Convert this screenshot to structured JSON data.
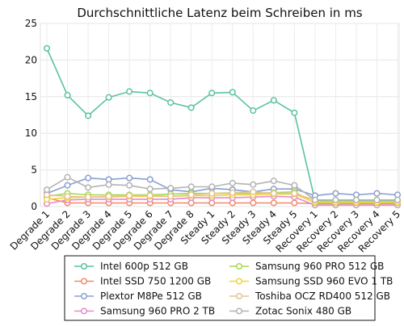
{
  "chart_data": {
    "type": "line",
    "title": "Durchschnittliche Latenz beim Schreiben in ms",
    "xlabel": "",
    "ylabel": "",
    "ylim": [
      0,
      25
    ],
    "yticks": [
      0,
      5,
      10,
      15,
      20,
      25
    ],
    "grid": true,
    "legend_position": "bottom",
    "categories": [
      "Degrade 1",
      "Degrade 2",
      "Degrade 3",
      "Degrade 4",
      "Degrade 5",
      "Degrade 6",
      "Degrade 7",
      "Degrade 8",
      "Steady 1",
      "Steady 2",
      "Steady 3",
      "Steady 4",
      "Steady 5",
      "Recovery 1",
      "Recovery 2",
      "Recovery 3",
      "Recovery 4",
      "Recovery 5"
    ],
    "series": [
      {
        "name": "Intel 600p 512 GB",
        "color": "#5cc39e",
        "values": [
          21.6,
          15.2,
          12.4,
          14.9,
          15.7,
          15.5,
          14.2,
          13.5,
          15.5,
          15.6,
          13.1,
          14.5,
          12.8,
          0.8,
          0.8,
          0.8,
          0.8,
          0.8
        ]
      },
      {
        "name": "Intel SSD 750 1200 GB",
        "color": "#f08a6c",
        "values": [
          1.2,
          0.5,
          0.5,
          0.5,
          0.5,
          0.5,
          0.5,
          0.5,
          0.5,
          0.5,
          0.5,
          0.5,
          0.5,
          0.4,
          0.4,
          0.4,
          0.4,
          0.4
        ]
      },
      {
        "name": "Plextor M8Pe 512 GB",
        "color": "#8aa0d0",
        "values": [
          1.8,
          2.9,
          3.9,
          3.7,
          3.9,
          3.7,
          2.3,
          2.0,
          2.5,
          2.3,
          2.0,
          2.4,
          2.4,
          1.5,
          1.8,
          1.6,
          1.8,
          1.6
        ]
      },
      {
        "name": "Samsung 960 PRO 2 TB",
        "color": "#e58bcc",
        "values": [
          0.4,
          0.9,
          1.0,
          1.0,
          1.0,
          1.0,
          1.0,
          1.2,
          1.2,
          1.2,
          1.3,
          1.4,
          1.3,
          0.2,
          0.2,
          0.2,
          0.2,
          0.2
        ]
      },
      {
        "name": "Samsung 960 PRO 512 GB",
        "color": "#a6d854",
        "values": [
          1.4,
          1.8,
          1.6,
          1.6,
          1.6,
          1.6,
          1.7,
          1.8,
          1.8,
          1.8,
          1.8,
          1.9,
          2.0,
          0.5,
          0.5,
          0.5,
          0.5,
          0.5
        ]
      },
      {
        "name": "Samsung SSD 960 EVO 1 TB",
        "color": "#f2d33a",
        "values": [
          1.0,
          1.2,
          1.3,
          1.3,
          1.4,
          1.4,
          1.4,
          1.5,
          1.5,
          1.6,
          1.6,
          1.7,
          1.7,
          0.6,
          0.6,
          0.6,
          0.6,
          0.6
        ]
      },
      {
        "name": "Toshiba OCZ RD400 512 GB",
        "color": "#e5c494",
        "values": [
          1.6,
          1.4,
          1.3,
          1.4,
          1.5,
          1.5,
          1.4,
          1.6,
          1.8,
          1.9,
          2.0,
          1.8,
          1.8,
          0.9,
          0.9,
          0.9,
          0.9,
          0.9
        ]
      },
      {
        "name": "Zotac Sonix 480 GB",
        "color": "#b3b3b3",
        "values": [
          2.3,
          4.0,
          2.6,
          3.0,
          2.9,
          2.4,
          2.5,
          2.7,
          2.7,
          3.2,
          3.0,
          3.5,
          2.9,
          0.9,
          0.9,
          0.9,
          0.9,
          0.9
        ]
      }
    ]
  }
}
